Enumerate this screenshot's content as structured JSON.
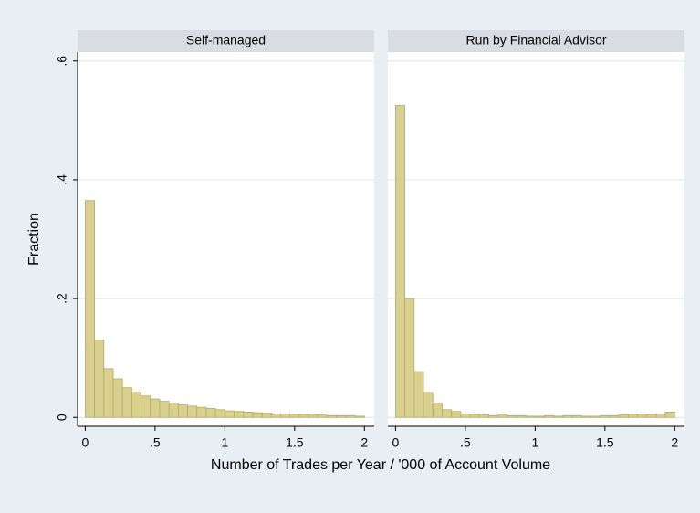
{
  "chart_data": [
    {
      "type": "histogram",
      "title": "Self-managed",
      "color": "#d9d08f",
      "bins": [
        0,
        0.0667,
        0.1333,
        0.2,
        0.2667,
        0.3333,
        0.4,
        0.4667,
        0.5333,
        0.6,
        0.6667,
        0.7333,
        0.8,
        0.8667,
        0.9333,
        1,
        1.0667,
        1.1333,
        1.2,
        1.2667,
        1.3333,
        1.4,
        1.4667,
        1.5333,
        1.6,
        1.6667,
        1.7333,
        1.8,
        1.8667,
        1.9333,
        2
      ],
      "values": [
        0.365,
        0.13,
        0.082,
        0.065,
        0.05,
        0.042,
        0.036,
        0.031,
        0.027,
        0.024,
        0.021,
        0.019,
        0.017,
        0.015,
        0.013,
        0.011,
        0.01,
        0.009,
        0.008,
        0.007,
        0.006,
        0.006,
        0.005,
        0.005,
        0.004,
        0.004,
        0.003,
        0.003,
        0.003,
        0.002
      ],
      "xlim": [
        -0.055,
        2.07
      ],
      "xticks": [
        0,
        {
          "value": 0.5,
          "label": ".5"
        },
        1,
        1.5,
        2
      ],
      "ylim": [
        -0.015,
        0.615
      ],
      "yticks": [
        0,
        {
          "value": 0.2,
          "label": ".2"
        },
        {
          "value": 0.4,
          "label": ".4"
        },
        {
          "value": 0.6,
          "label": ".6"
        }
      ],
      "grid": true
    },
    {
      "type": "histogram",
      "title": "Run by Financial Advisor",
      "color": "#d9d08f",
      "bins": [
        0,
        0.0667,
        0.1333,
        0.2,
        0.2667,
        0.3333,
        0.4,
        0.4667,
        0.5333,
        0.6,
        0.6667,
        0.7333,
        0.8,
        0.8667,
        0.9333,
        1,
        1.0667,
        1.1333,
        1.2,
        1.2667,
        1.3333,
        1.4,
        1.4667,
        1.5333,
        1.6,
        1.6667,
        1.7333,
        1.8,
        1.8667,
        1.9333,
        2
      ],
      "values": [
        0.525,
        0.2,
        0.077,
        0.042,
        0.024,
        0.013,
        0.01,
        0.006,
        0.005,
        0.004,
        0.003,
        0.004,
        0.003,
        0.003,
        0.002,
        0.002,
        0.003,
        0.002,
        0.003,
        0.003,
        0.002,
        0.002,
        0.003,
        0.003,
        0.004,
        0.005,
        0.004,
        0.005,
        0.006,
        0.009
      ],
      "xlim": [
        -0.055,
        2.07
      ],
      "xticks": [
        0,
        {
          "value": 0.5,
          "label": ".5"
        },
        1,
        1.5,
        2
      ],
      "ylim": [
        -0.015,
        0.615
      ],
      "yticks": [
        0,
        {
          "value": 0.2,
          "label": ".2"
        },
        {
          "value": 0.4,
          "label": ".4"
        },
        {
          "value": 0.6,
          "label": ".6"
        }
      ],
      "grid": true
    }
  ],
  "xlabel": "Number of Trades per Year / '000 of Account Volume",
  "ylabel": "Fraction"
}
